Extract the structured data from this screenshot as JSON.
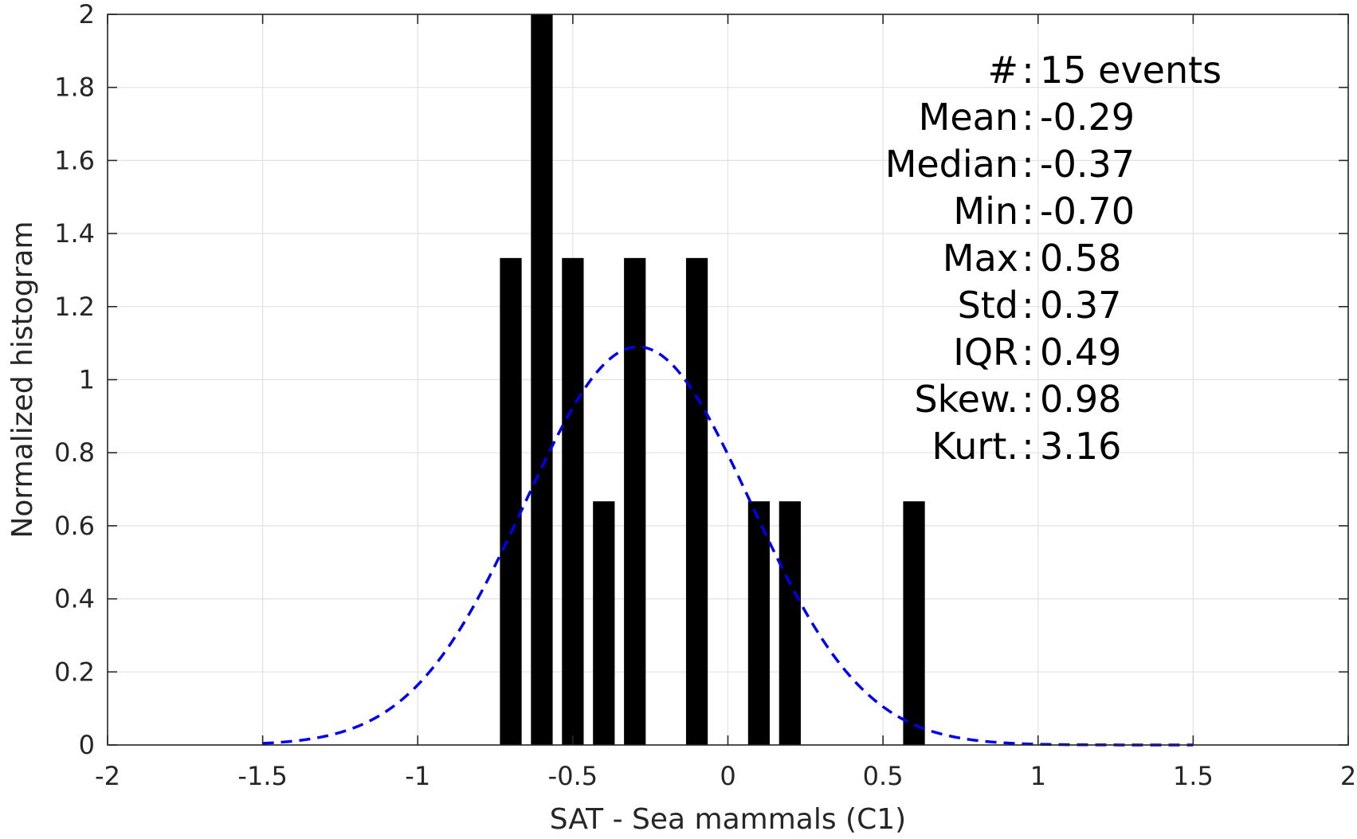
{
  "chart_data": {
    "type": "bar",
    "xlabel": "SAT - Sea mammals (C1)",
    "ylabel": "Normalized histogram",
    "xlim": [
      -2,
      2
    ],
    "ylim": [
      0,
      2
    ],
    "xticks": [
      -2,
      -1.5,
      -1,
      -0.5,
      0,
      0.5,
      1,
      1.5,
      2
    ],
    "xtick_labels": [
      "-2",
      "-1.5",
      "-1",
      "-0.5",
      "0",
      "0.5",
      "1",
      "1.5",
      "2"
    ],
    "yticks": [
      0,
      0.2,
      0.4,
      0.6,
      0.8,
      1,
      1.2,
      1.4,
      1.6,
      1.8,
      2
    ],
    "ytick_labels": [
      "0",
      "0.2",
      "0.4",
      "0.6",
      "0.8",
      "1",
      "1.2",
      "1.4",
      "1.6",
      "1.8",
      "2"
    ],
    "grid": true,
    "bar_color": "#000000",
    "bar_width": 0.07,
    "bars": [
      {
        "x": -0.7,
        "y": 1.333
      },
      {
        "x": -0.6,
        "y": 2.0
      },
      {
        "x": -0.5,
        "y": 1.333
      },
      {
        "x": -0.4,
        "y": 0.667
      },
      {
        "x": -0.3,
        "y": 1.333
      },
      {
        "x": -0.1,
        "y": 1.333
      },
      {
        "x": 0.1,
        "y": 0.667
      },
      {
        "x": 0.2,
        "y": 0.667
      },
      {
        "x": 0.6,
        "y": 0.667
      }
    ],
    "fit_curve": {
      "style": "dashed",
      "color": "#0000ee",
      "mean": -0.29,
      "std": 0.365,
      "peak": 1.09,
      "x_range": [
        -1.5,
        1.5
      ]
    },
    "annotation": [
      {
        "label": "#",
        "sep": ":",
        "value": "15 events"
      },
      {
        "label": "Mean",
        "sep": ":",
        "value": "-0.29"
      },
      {
        "label": "Median",
        "sep": ":",
        "value": "-0.37"
      },
      {
        "label": "Min",
        "sep": ":",
        "value": "-0.70"
      },
      {
        "label": "Max",
        "sep": ":",
        "value": "0.58"
      },
      {
        "label": "Std",
        "sep": ":",
        "value": "0.37"
      },
      {
        "label": "IQR",
        "sep": ":",
        "value": "0.49"
      },
      {
        "label": "Skew.",
        "sep": ":",
        "value": "0.98"
      },
      {
        "label": "Kurt.",
        "sep": ":",
        "value": "3.16"
      }
    ]
  }
}
